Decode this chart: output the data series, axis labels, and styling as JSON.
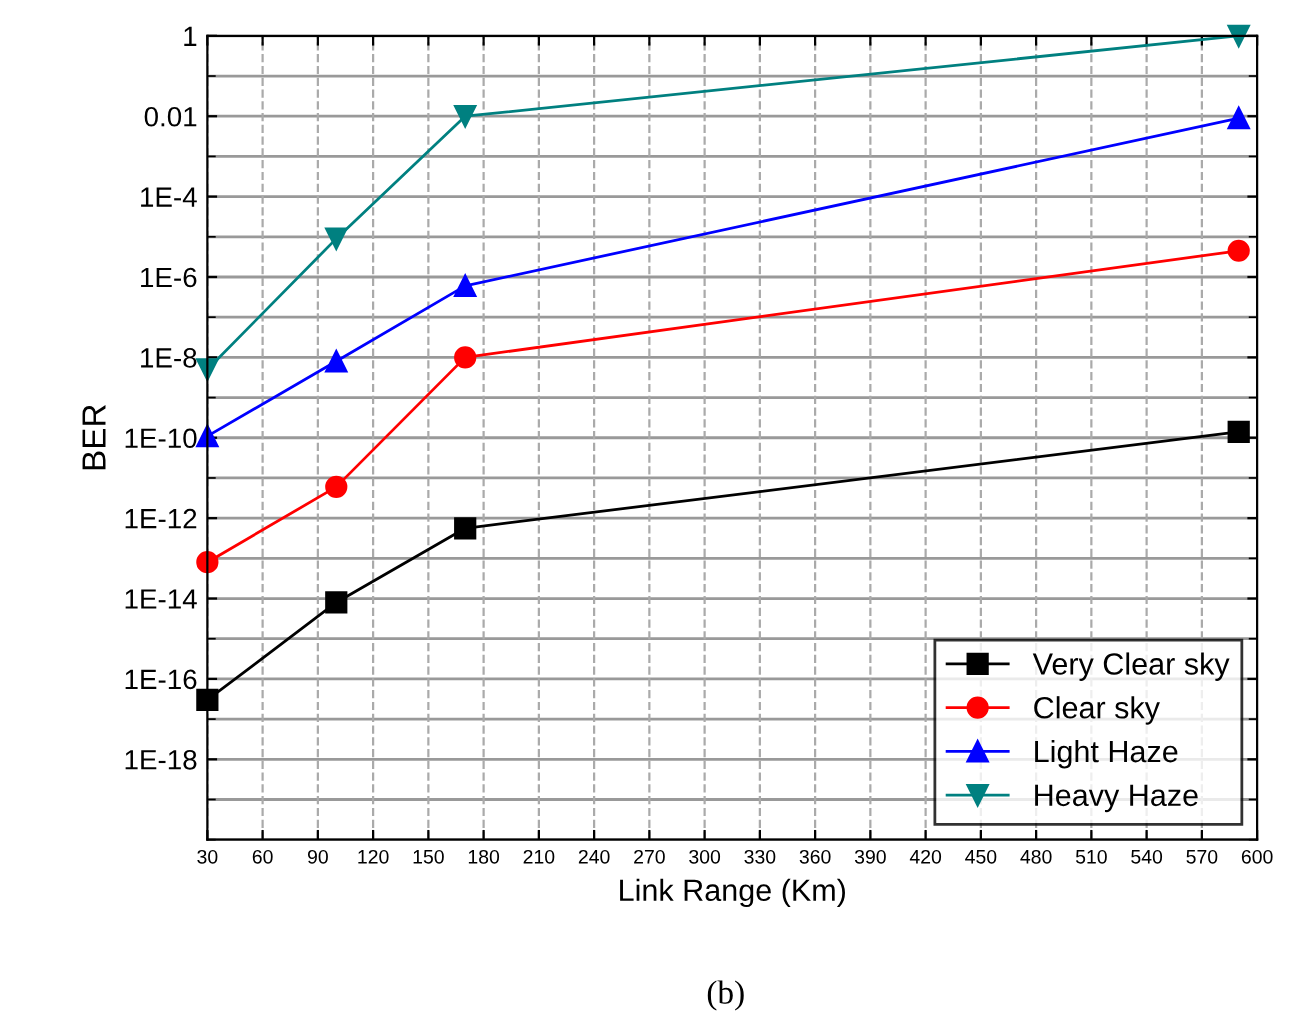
{
  "chart_data": {
    "type": "line",
    "xlabel": "Link Range (Km)",
    "ylabel": "BER",
    "log": "y",
    "x": [
      30,
      100,
      170,
      590
    ],
    "series": [
      {
        "name": "Very Clear sky",
        "color": "#000000",
        "marker": "square",
        "values": [
          3e-17,
          8e-15,
          5.6e-13,
          1.4e-10
        ]
      },
      {
        "name": "Clear sky",
        "color": "#ff0000",
        "marker": "circle",
        "values": [
          8e-14,
          6e-12,
          1e-08,
          4.5e-06
        ]
      },
      {
        "name": "Light Haze",
        "color": "#0000ff",
        "marker": "triangle",
        "values": [
          1.1e-10,
          8e-09,
          6e-07,
          0.009
        ]
      },
      {
        "name": "Heavy Haze",
        "color": "#008080",
        "marker": "triangle_down",
        "values": [
          5e-09,
          9e-06,
          0.01,
          1
        ]
      }
    ],
    "xlim": [
      30,
      600
    ],
    "xticks": [
      30,
      60,
      90,
      120,
      150,
      180,
      210,
      240,
      270,
      300,
      330,
      360,
      390,
      420,
      450,
      480,
      510,
      540,
      570,
      600
    ],
    "ylim": [
      1e-20,
      1
    ],
    "yticks": [
      {
        "value": 1,
        "label": "1"
      },
      {
        "value": 0.01,
        "label": "0.01"
      },
      {
        "value": 0.0001,
        "label": "1E-4"
      },
      {
        "value": 1e-06,
        "label": "1E-6"
      },
      {
        "value": 1e-08,
        "label": "1E-8"
      },
      {
        "value": 1e-10,
        "label": "1E-10"
      },
      {
        "value": 1e-12,
        "label": "1E-12"
      },
      {
        "value": 1e-14,
        "label": "1E-14"
      },
      {
        "value": 1e-16,
        "label": "1E-16"
      },
      {
        "value": 1e-18,
        "label": "1E-18"
      }
    ],
    "grid": true,
    "legend": "bottom right",
    "line_style": "solid",
    "annotations": [
      "(b)"
    ]
  }
}
